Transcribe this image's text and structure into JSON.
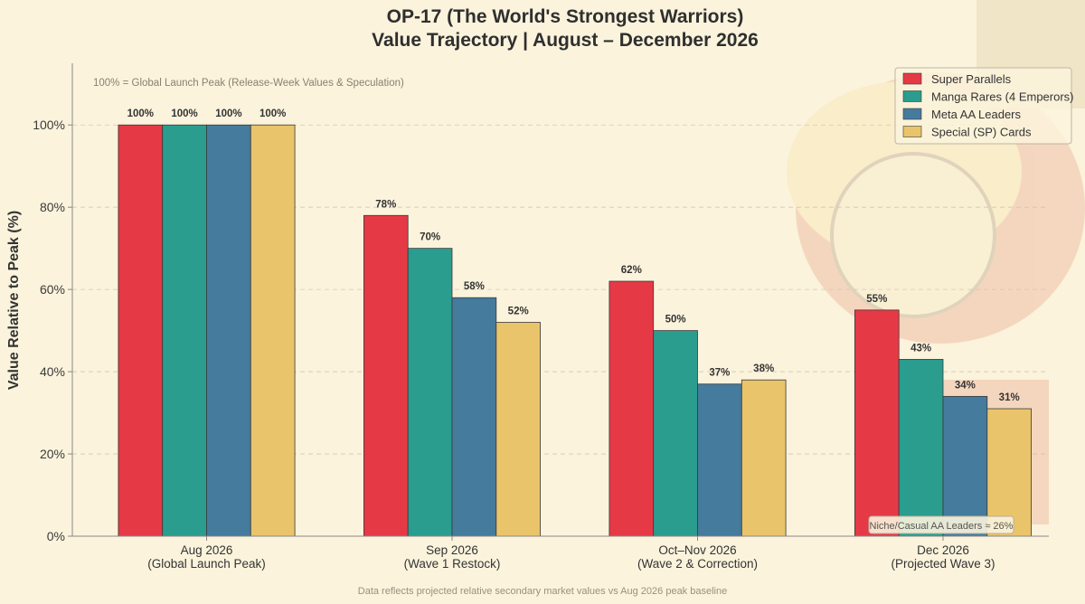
{
  "title_line1": "OP-17 (The World's Strongest Warriors)",
  "title_line2": "Value Trajectory  |  August – December 2026",
  "note_top": "100% = Global Launch Peak (Release-Week Values & Speculation)",
  "annotation": "Niche/Casual AA Leaders ≈ 26%",
  "footer": "Data reflects projected relative secondary market values vs Aug 2026 peak baseline",
  "colors": {
    "background": "#fbf3dc",
    "series": [
      "#e63946",
      "#2a9d8f",
      "#457b9d",
      "#e9c46a"
    ]
  },
  "chart_data": {
    "type": "bar",
    "title": "OP-17 (The World's Strongest Warriors) Value Trajectory | August – December 2026",
    "xlabel": "",
    "ylabel": "Value Relative to Peak (%)",
    "ylim": [
      0,
      115
    ],
    "yticks": [
      0,
      20,
      40,
      60,
      80,
      100
    ],
    "ytick_labels": [
      "0%",
      "20%",
      "40%",
      "60%",
      "80%",
      "100%"
    ],
    "grid": true,
    "legend_position": "top-right",
    "categories": [
      [
        "Aug 2026",
        "(Global Launch Peak)"
      ],
      [
        "Sep 2026",
        "(Wave 1 Restock)"
      ],
      [
        "Oct–Nov 2026",
        "(Wave 2 & Correction)"
      ],
      [
        "Dec 2026",
        "(Projected Wave 3)"
      ]
    ],
    "series": [
      {
        "name": "Super Parallels",
        "values": [
          100,
          78,
          62,
          55
        ]
      },
      {
        "name": "Manga Rares (4 Emperors)",
        "values": [
          100,
          70,
          50,
          43
        ]
      },
      {
        "name": "Meta AA Leaders",
        "values": [
          100,
          58,
          37,
          34
        ]
      },
      {
        "name": "Special (SP) Cards",
        "values": [
          100,
          52,
          38,
          31
        ]
      }
    ]
  }
}
